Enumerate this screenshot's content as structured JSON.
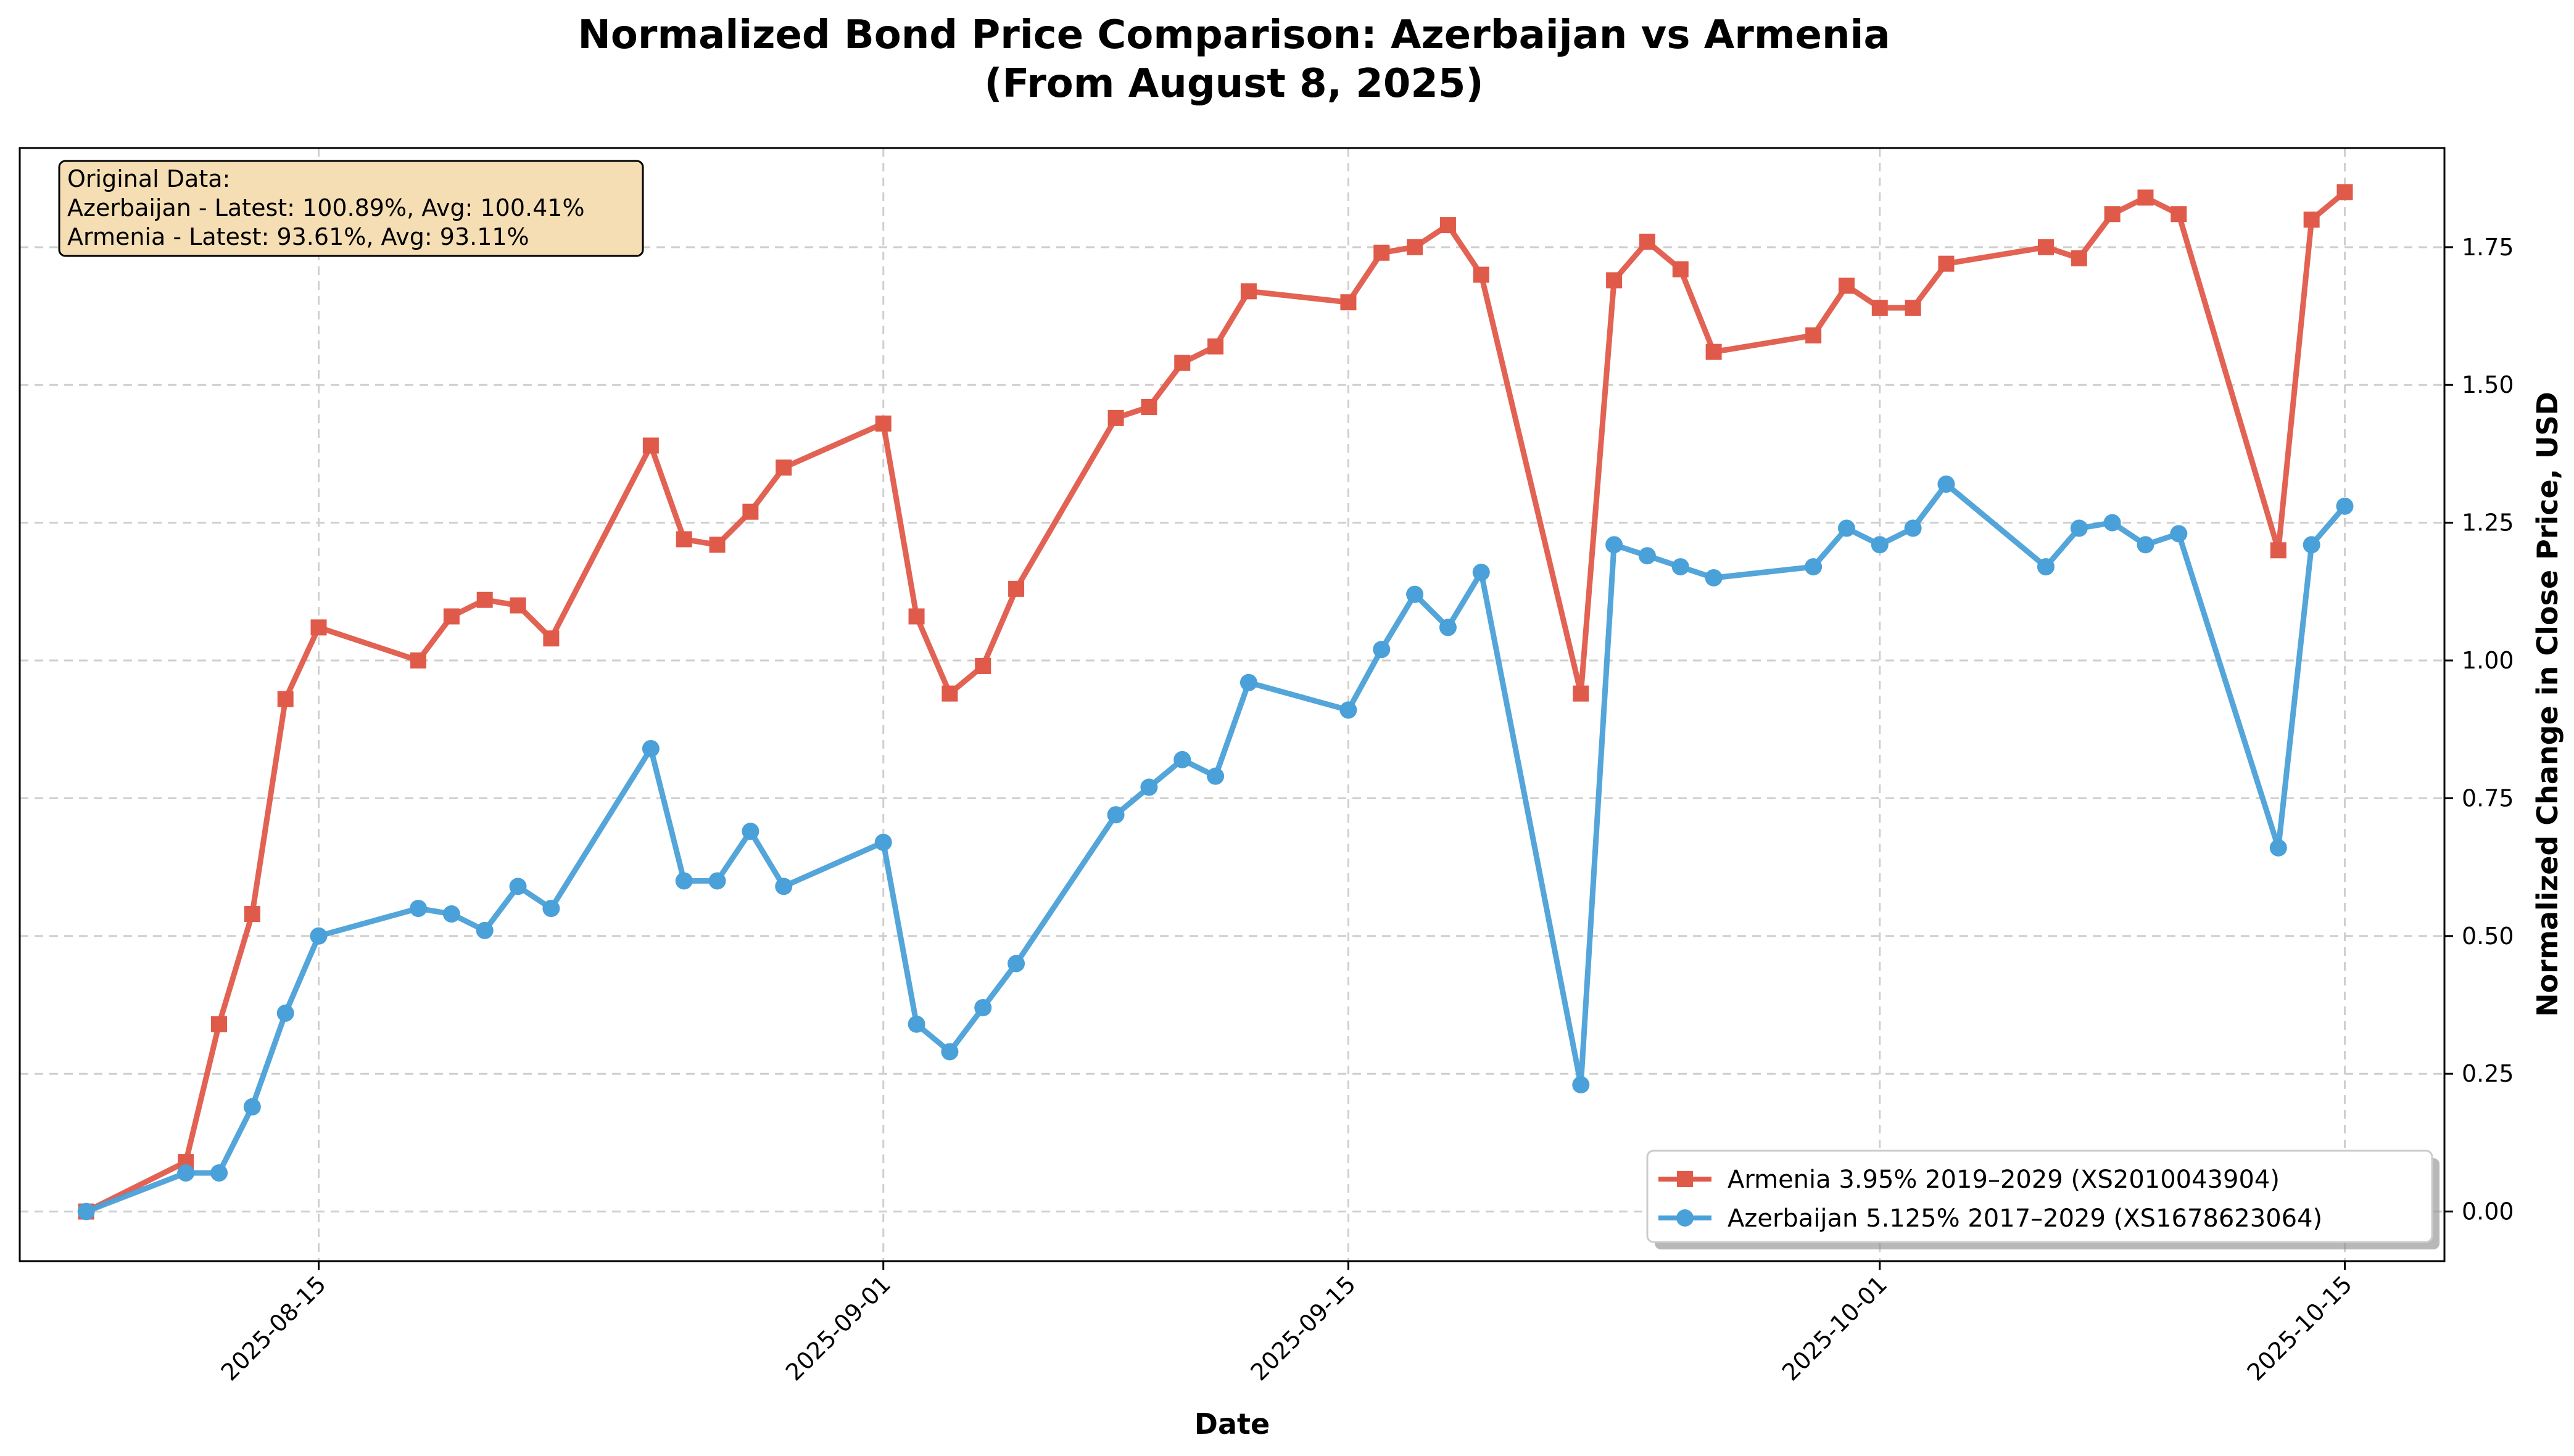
{
  "chart_data": {
    "type": "line",
    "title_line1": "Normalized Bond Price Comparison: Azerbaijan vs Armenia",
    "title_line2": "(From August 8, 2025)",
    "xlabel": "Date",
    "ylabel": "Normalized Change in Close Price, USD",
    "xlim": [
      "2025-08-06",
      "2025-10-18"
    ],
    "ylim": [
      -0.09,
      1.93
    ],
    "x_ticks": [
      "2025-08-15",
      "2025-09-01",
      "2025-09-15",
      "2025-10-01",
      "2025-10-15"
    ],
    "y_ticks": [
      0.0,
      0.25,
      0.5,
      0.75,
      1.0,
      1.25,
      1.5,
      1.75
    ],
    "y_tick_labels": [
      "0.00",
      "0.25",
      "0.50",
      "0.75",
      "1.00",
      "1.25",
      "1.50",
      "1.75"
    ],
    "y_axis_side": "right",
    "grid": true,
    "legend_position": "lower-right",
    "annotation": {
      "line1": "Original Data:",
      "line2": "Azerbaijan - Latest: 100.89%, Avg: 100.41%",
      "line3": "Armenia - Latest: 93.61%, Avg: 93.11%",
      "position": "top-left",
      "background": "#f5deb3"
    },
    "series": [
      {
        "name": "Armenia 3.95% 2019–2029 (XS2010043904)",
        "color": "#e05a4a",
        "marker": "square",
        "x": [
          "2025-08-08",
          "2025-08-11",
          "2025-08-12",
          "2025-08-13",
          "2025-08-14",
          "2025-08-15",
          "2025-08-18",
          "2025-08-19",
          "2025-08-20",
          "2025-08-21",
          "2025-08-22",
          "2025-08-25",
          "2025-08-26",
          "2025-08-27",
          "2025-08-28",
          "2025-08-29",
          "2025-09-01",
          "2025-09-02",
          "2025-09-03",
          "2025-09-04",
          "2025-09-05",
          "2025-09-08",
          "2025-09-09",
          "2025-09-10",
          "2025-09-11",
          "2025-09-12",
          "2025-09-15",
          "2025-09-16",
          "2025-09-17",
          "2025-09-18",
          "2025-09-19",
          "2025-09-22",
          "2025-09-23",
          "2025-09-24",
          "2025-09-25",
          "2025-09-26",
          "2025-09-29",
          "2025-09-30",
          "2025-10-01",
          "2025-10-02",
          "2025-10-03",
          "2025-10-06",
          "2025-10-07",
          "2025-10-08",
          "2025-10-09",
          "2025-10-10",
          "2025-10-13",
          "2025-10-14",
          "2025-10-15"
        ],
        "values": [
          0.0,
          0.09,
          0.34,
          0.54,
          0.93,
          1.06,
          1.0,
          1.08,
          1.11,
          1.1,
          1.04,
          1.39,
          1.22,
          1.21,
          1.27,
          1.35,
          1.43,
          1.08,
          0.94,
          0.99,
          1.13,
          1.44,
          1.46,
          1.54,
          1.57,
          1.67,
          1.65,
          1.74,
          1.75,
          1.79,
          1.7,
          0.94,
          1.69,
          1.76,
          1.71,
          1.56,
          1.59,
          1.68,
          1.64,
          1.64,
          1.72,
          1.75,
          1.73,
          1.81,
          1.84,
          1.81,
          1.2,
          1.8,
          1.85
        ]
      },
      {
        "name": "Azerbaijan 5.125% 2017–2029 (XS1678623064)",
        "color": "#4aa0d8",
        "marker": "circle",
        "x": [
          "2025-08-08",
          "2025-08-11",
          "2025-08-12",
          "2025-08-13",
          "2025-08-14",
          "2025-08-15",
          "2025-08-18",
          "2025-08-19",
          "2025-08-20",
          "2025-08-21",
          "2025-08-22",
          "2025-08-25",
          "2025-08-26",
          "2025-08-27",
          "2025-08-28",
          "2025-08-29",
          "2025-09-01",
          "2025-09-02",
          "2025-09-03",
          "2025-09-04",
          "2025-09-05",
          "2025-09-08",
          "2025-09-09",
          "2025-09-10",
          "2025-09-11",
          "2025-09-12",
          "2025-09-15",
          "2025-09-16",
          "2025-09-17",
          "2025-09-18",
          "2025-09-19",
          "2025-09-22",
          "2025-09-23",
          "2025-09-24",
          "2025-09-25",
          "2025-09-26",
          "2025-09-29",
          "2025-09-30",
          "2025-10-01",
          "2025-10-02",
          "2025-10-03",
          "2025-10-06",
          "2025-10-07",
          "2025-10-08",
          "2025-10-09",
          "2025-10-10",
          "2025-10-13",
          "2025-10-14",
          "2025-10-15"
        ],
        "values": [
          0.0,
          0.07,
          0.07,
          0.19,
          0.36,
          0.5,
          0.55,
          0.54,
          0.51,
          0.59,
          0.55,
          0.84,
          0.6,
          0.6,
          0.69,
          0.59,
          0.67,
          0.34,
          0.29,
          0.37,
          0.45,
          0.72,
          0.77,
          0.82,
          0.79,
          0.96,
          0.91,
          1.02,
          1.12,
          1.06,
          1.16,
          0.23,
          1.21,
          1.19,
          1.17,
          1.15,
          1.17,
          1.24,
          1.21,
          1.24,
          1.32,
          1.17,
          1.24,
          1.25,
          1.21,
          1.23,
          0.66,
          1.21,
          1.28
        ]
      }
    ]
  }
}
